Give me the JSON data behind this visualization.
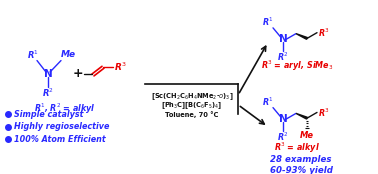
{
  "bg_color": "#ffffff",
  "blue": "#2929ff",
  "red": "#e80000",
  "black": "#111111",
  "fig_width": 3.78,
  "fig_height": 1.74,
  "dpi": 100,
  "xlim": [
    0,
    378
  ],
  "ylim": [
    0,
    174
  ]
}
